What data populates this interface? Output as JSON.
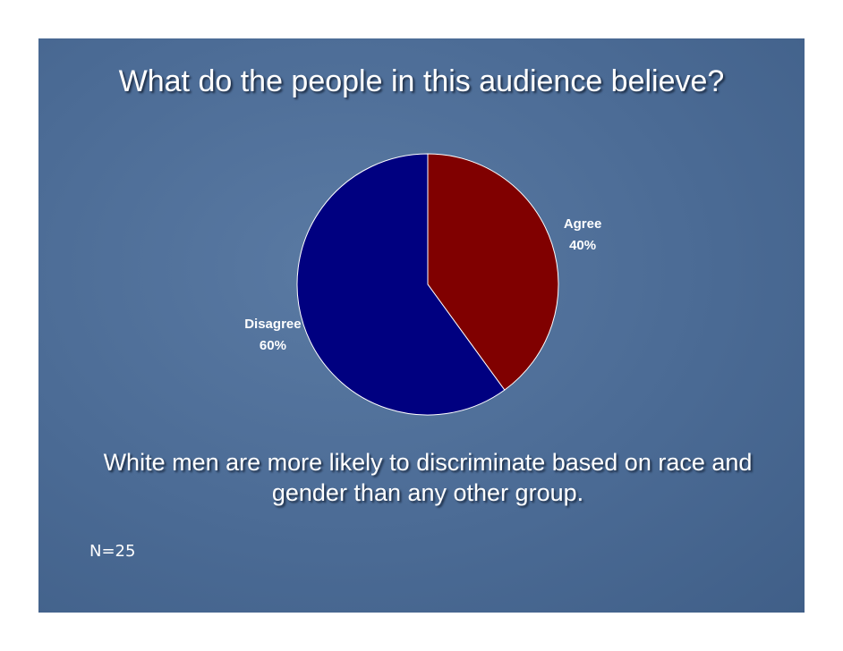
{
  "chart_data": {
    "type": "pie",
    "title": "What do the people in this audience believe?",
    "categories": [
      "Agree",
      "Disagree"
    ],
    "values": [
      40,
      60
    ],
    "value_labels": [
      "40%",
      "60%"
    ],
    "colors": [
      "#800000",
      "#000080"
    ],
    "caption": "White men are more likely to discriminate based on race and gender than any other group.",
    "note": "N=25"
  }
}
